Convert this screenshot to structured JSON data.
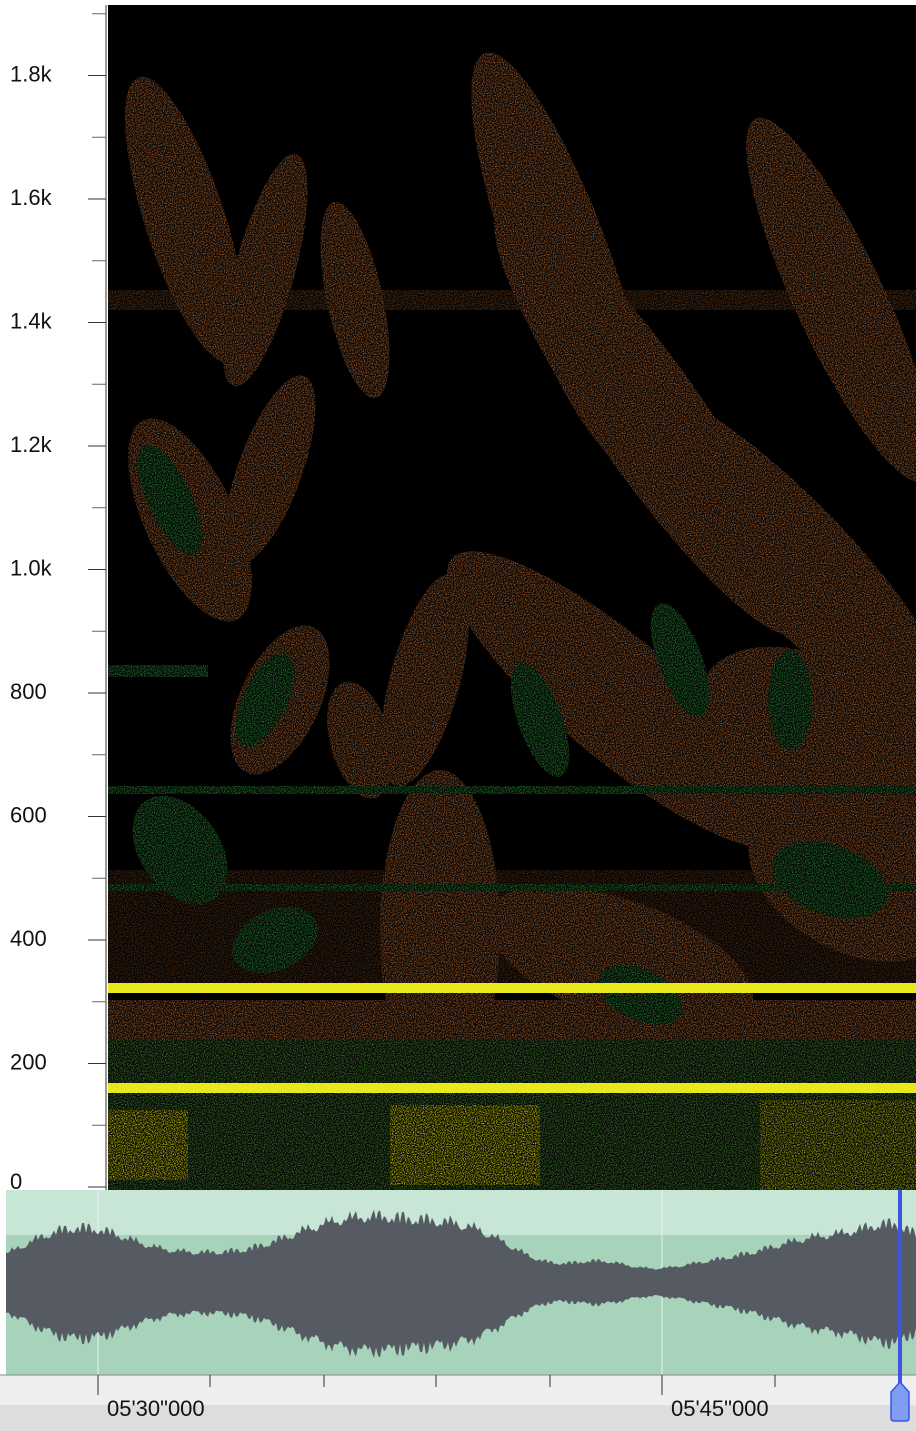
{
  "frequency_axis": {
    "labels": [
      "0",
      "200",
      "400",
      "600",
      "800",
      "1.0k",
      "1.2k",
      "1.4k",
      "1.6k",
      "1.8k"
    ]
  },
  "time_ruler": {
    "labels": [
      "05'30\"000",
      "05'45\"000"
    ]
  }
}
